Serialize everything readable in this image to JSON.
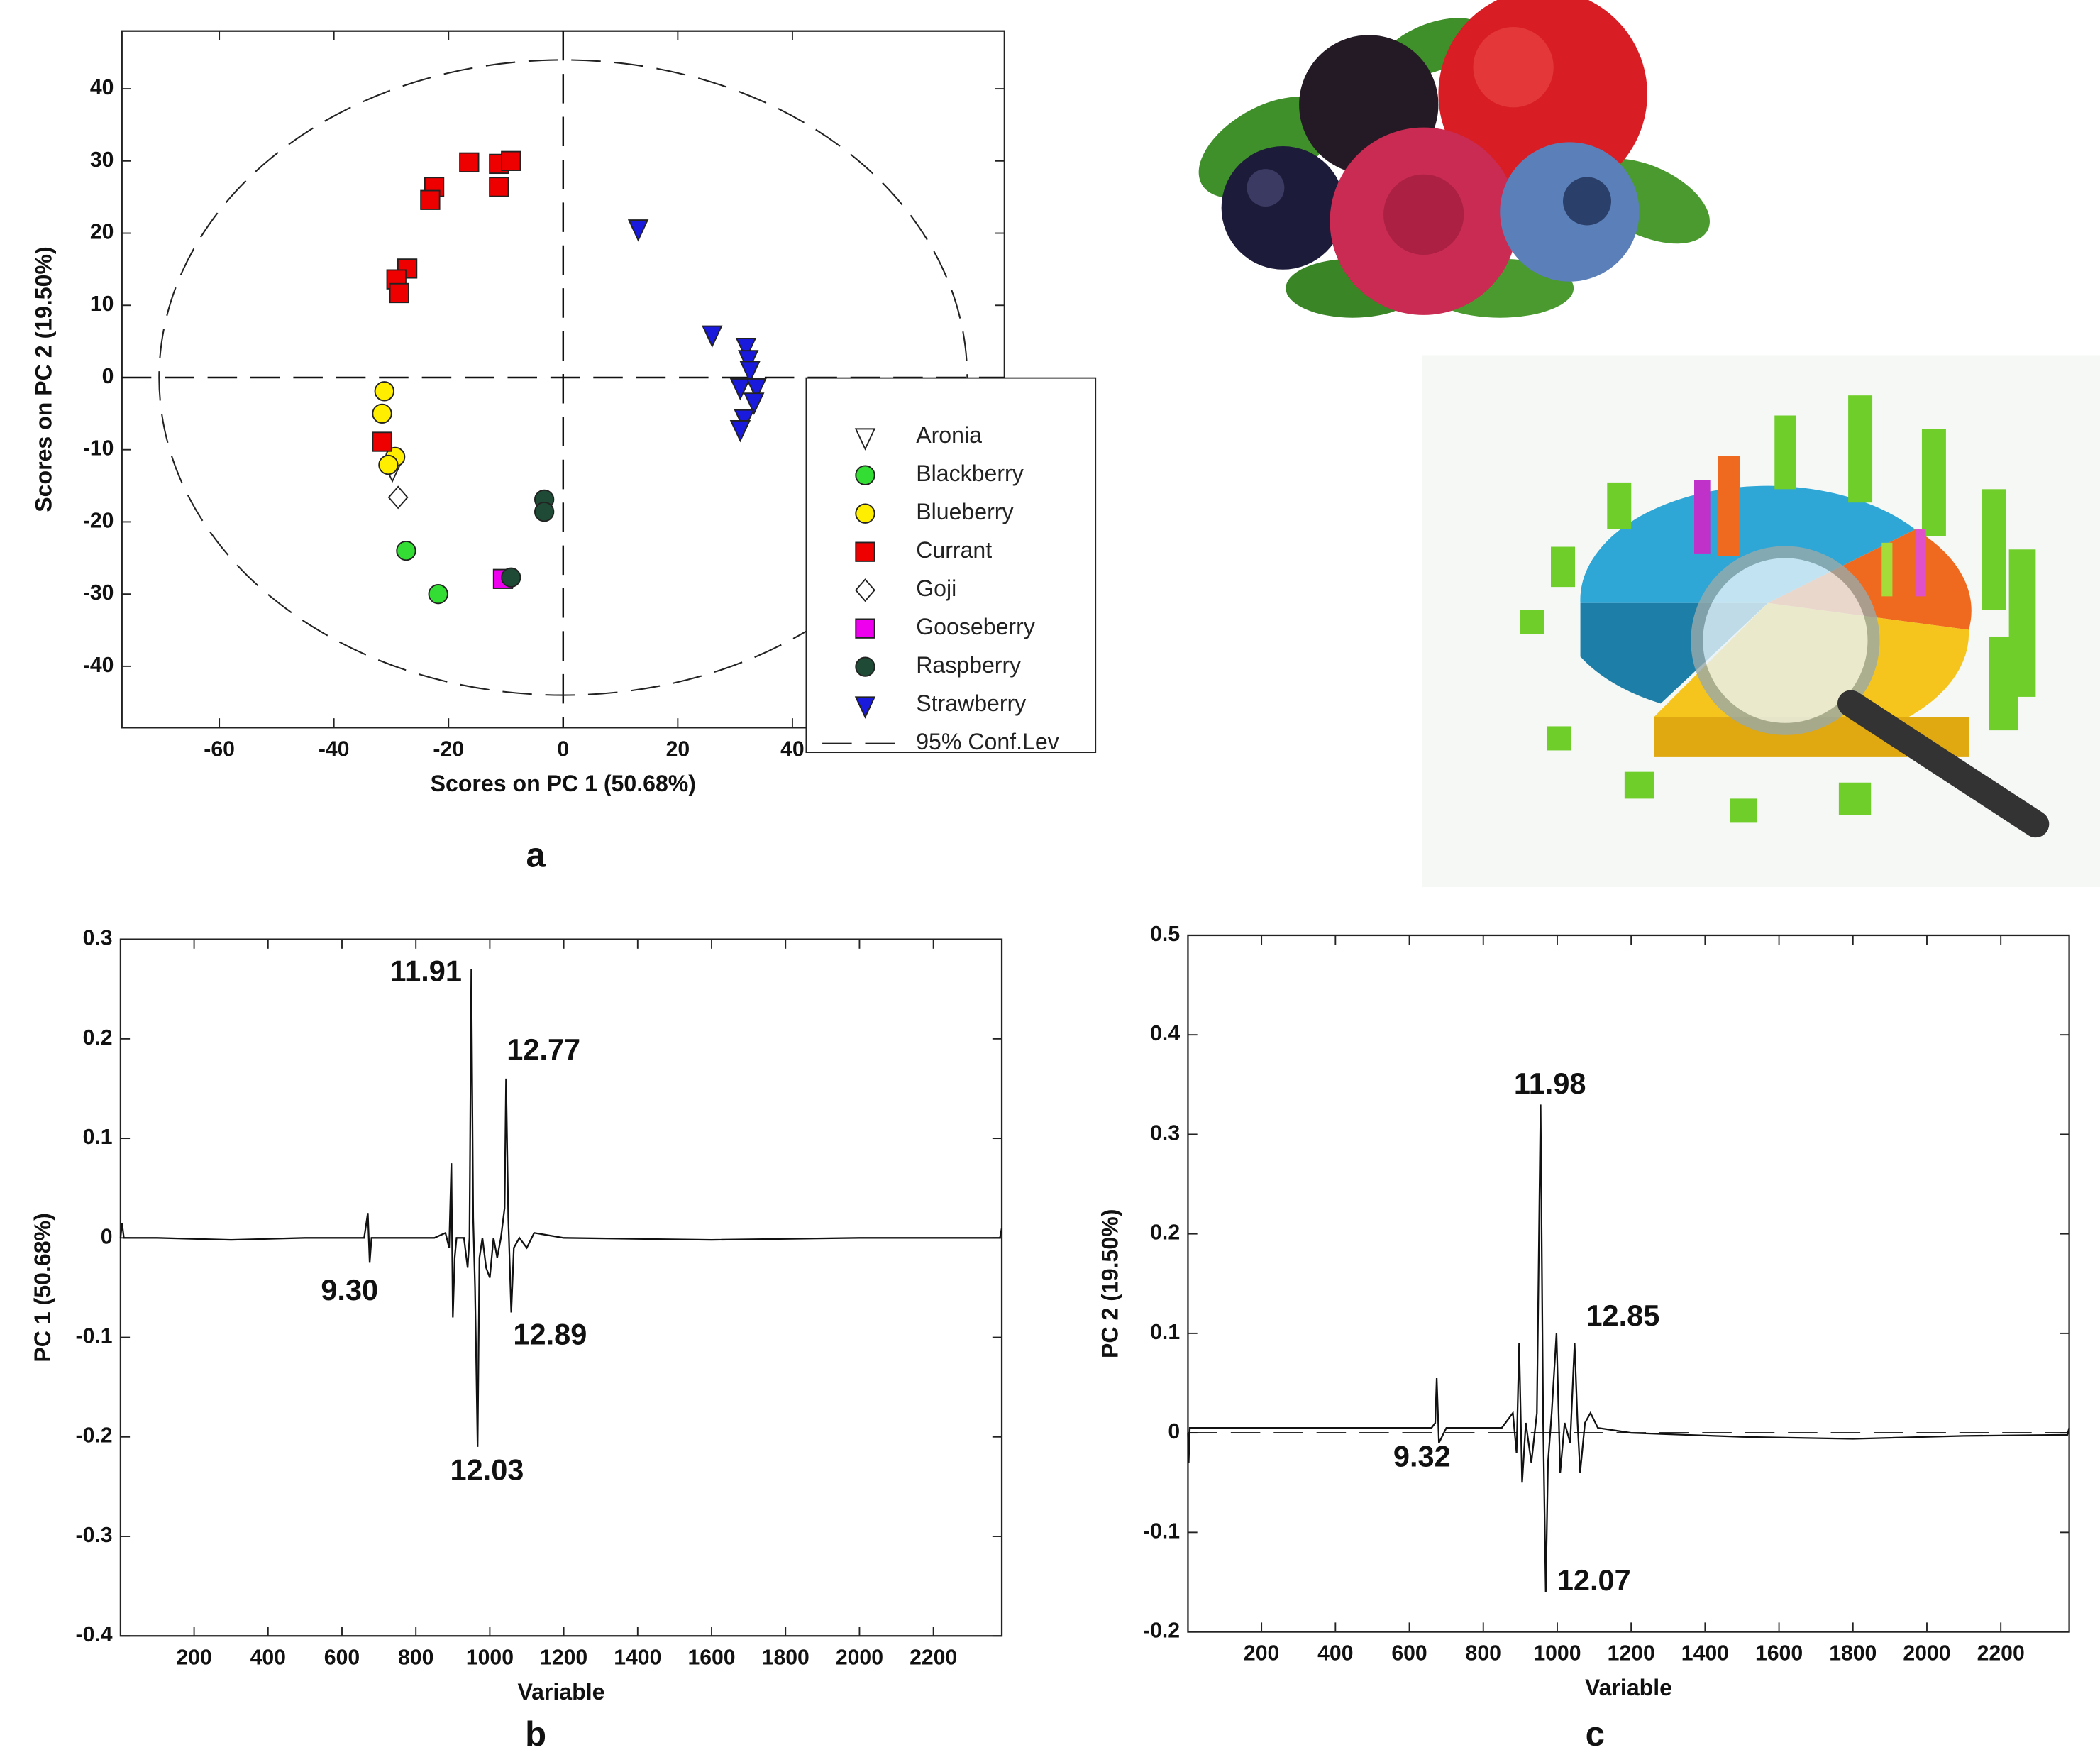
{
  "chart_data": [
    {
      "type": "scatter",
      "panel_label": "a",
      "xlabel": "Scores on PC 1 (50.68%)",
      "ylabel": "Scores on PC 2 (19.50%)",
      "xlim": [
        -77,
        77
      ],
      "ylim": [
        -48.5,
        48
      ],
      "xticks": [
        -60,
        -40,
        -20,
        0,
        20,
        40
      ],
      "yticks": [
        -40,
        -30,
        -20,
        -10,
        0,
        10,
        20,
        30,
        40
      ],
      "zero_lines": true,
      "legend": "right",
      "confidence_ellipse": {
        "name": "95% Conf.Lev",
        "rx": 70.5,
        "ry": 44
      },
      "series": [
        {
          "name": "Aronia",
          "color": "#ffffff",
          "marker": "triangle-down",
          "x": [
            -29.8
          ],
          "values": [
            -12.7
          ]
        },
        {
          "name": "Blackberry",
          "color": "#33dd33",
          "marker": "circle",
          "x": [
            -27.4,
            -21.8
          ],
          "values": [
            -24.0,
            -30.0
          ]
        },
        {
          "name": "Blueberry",
          "color": "#ffee00",
          "marker": "circle",
          "x": [
            -31.2,
            -31.6,
            -29.3,
            -30.5
          ],
          "values": [
            -1.9,
            -5.0,
            -11.0,
            -12.1
          ]
        },
        {
          "name": "Currant",
          "color": "#ee0000",
          "marker": "square",
          "x": [
            -22.5,
            -23.2,
            -16.4,
            -11.2,
            -9.1,
            -11.2,
            -27.2,
            -29.1,
            -28.6,
            -31.6
          ],
          "values": [
            26.4,
            24.6,
            29.8,
            29.6,
            30.0,
            26.4,
            15.1,
            13.6,
            11.7,
            -8.9
          ]
        },
        {
          "name": "Goji",
          "color": "#ffffff",
          "marker": "diamond",
          "x": [
            -28.8
          ],
          "values": [
            -16.6
          ]
        },
        {
          "name": "Gooseberry",
          "color": "#ee00ee",
          "marker": "square",
          "x": [
            -10.5
          ],
          "values": [
            -27.9
          ]
        },
        {
          "name": "Raspberry",
          "color": "#1f4a36",
          "marker": "circle",
          "x": [
            -9.1,
            -3.3,
            -3.3
          ],
          "values": [
            -27.7,
            -16.9,
            -18.6
          ]
        },
        {
          "name": "Strawberry",
          "color": "#1a1adc",
          "marker": "triangle-down",
          "x": [
            13.1,
            26.0,
            31.9,
            32.3,
            32.6,
            30.9,
            33.7,
            33.3,
            31.6,
            30.9
          ],
          "values": [
            20.7,
            6.0,
            4.3,
            2.6,
            1.1,
            -1.3,
            -1.3,
            -3.3,
            -5.6,
            -7.1
          ]
        }
      ]
    },
    {
      "type": "line",
      "panel_label": "b",
      "xlabel": "Variable",
      "ylabel": "PC 1 (50.68%)",
      "xlim": [
        1,
        2385
      ],
      "ylim": [
        -0.4,
        0.3
      ],
      "xticks": [
        200,
        400,
        600,
        800,
        1000,
        1200,
        1400,
        1600,
        1800,
        2000,
        2200
      ],
      "yticks": [
        -0.4,
        -0.3,
        -0.2,
        -0.1,
        0,
        0.1,
        0.2,
        0.3
      ],
      "zero_lines": false,
      "color": "#111111",
      "x": [
        1,
        5,
        10,
        100,
        300,
        500,
        660,
        670,
        675,
        680,
        690,
        850,
        880,
        890,
        896,
        900,
        905,
        910,
        930,
        940,
        945,
        950,
        955,
        960,
        967,
        972,
        980,
        990,
        1000,
        1010,
        1020,
        1030,
        1040,
        1044,
        1050,
        1058,
        1065,
        1080,
        1100,
        1120,
        1200,
        1600,
        2000,
        2380,
        2385
      ],
      "values": [
        0,
        0.015,
        0,
        0,
        -0.002,
        0,
        0,
        0.025,
        -0.025,
        0,
        0,
        0,
        0.005,
        -0.01,
        0.075,
        -0.08,
        -0.02,
        0,
        0,
        -0.03,
        0,
        0.27,
        0.02,
        -0.05,
        -0.21,
        -0.02,
        0,
        -0.03,
        -0.04,
        0,
        -0.02,
        0,
        0.03,
        0.16,
        0.02,
        -0.075,
        -0.01,
        0,
        -0.01,
        0.005,
        0,
        -0.002,
        0,
        0,
        0.01
      ],
      "annotations": [
        {
          "text": "11.91",
          "x": 950,
          "y": 0.27
        },
        {
          "text": "12.77",
          "x": 1044,
          "y": 0.16
        },
        {
          "text": "9.30",
          "x": 675,
          "y": -0.025
        },
        {
          "text": "12.89",
          "x": 1058,
          "y": -0.075
        },
        {
          "text": "12.03",
          "x": 967,
          "y": -0.21
        }
      ]
    },
    {
      "type": "line",
      "panel_label": "c",
      "xlabel": "Variable",
      "ylabel": "PC 2 (19.50%)",
      "xlim": [
        1,
        2385
      ],
      "ylim": [
        -0.2,
        0.5
      ],
      "xticks": [
        200,
        400,
        600,
        800,
        1000,
        1200,
        1400,
        1600,
        1800,
        2000,
        2200
      ],
      "yticks": [
        -0.2,
        -0.1,
        0,
        0.1,
        0.2,
        0.3,
        0.4,
        0.5
      ],
      "zero_lines": true,
      "color": "#111111",
      "x": [
        1,
        3,
        6,
        100,
        400,
        660,
        670,
        674,
        680,
        700,
        850,
        880,
        890,
        897,
        905,
        915,
        930,
        945,
        955,
        962,
        969,
        975,
        985,
        998,
        1008,
        1020,
        1035,
        1047,
        1055,
        1062,
        1075,
        1090,
        1110,
        1200,
        1500,
        1800,
        2100,
        2380,
        2385
      ],
      "values": [
        0,
        -0.03,
        0.005,
        0.005,
        0.005,
        0.005,
        0.01,
        0.055,
        -0.01,
        0.005,
        0.005,
        0.02,
        -0.02,
        0.09,
        -0.05,
        0.01,
        -0.03,
        0.02,
        0.33,
        0.01,
        -0.16,
        -0.03,
        0.02,
        0.1,
        -0.04,
        0.01,
        -0.01,
        0.09,
        0.01,
        -0.04,
        0.01,
        0.02,
        0.005,
        0,
        -0.004,
        -0.006,
        -0.003,
        -0.002,
        0.005
      ],
      "annotations": [
        {
          "text": "11.98",
          "x": 955,
          "y": 0.33
        },
        {
          "text": "12.85",
          "x": 1047,
          "y": 0.09
        },
        {
          "text": "9.32",
          "x": 674,
          "y": -0.01
        },
        {
          "text": "12.07",
          "x": 969,
          "y": -0.16
        }
      ]
    }
  ]
}
